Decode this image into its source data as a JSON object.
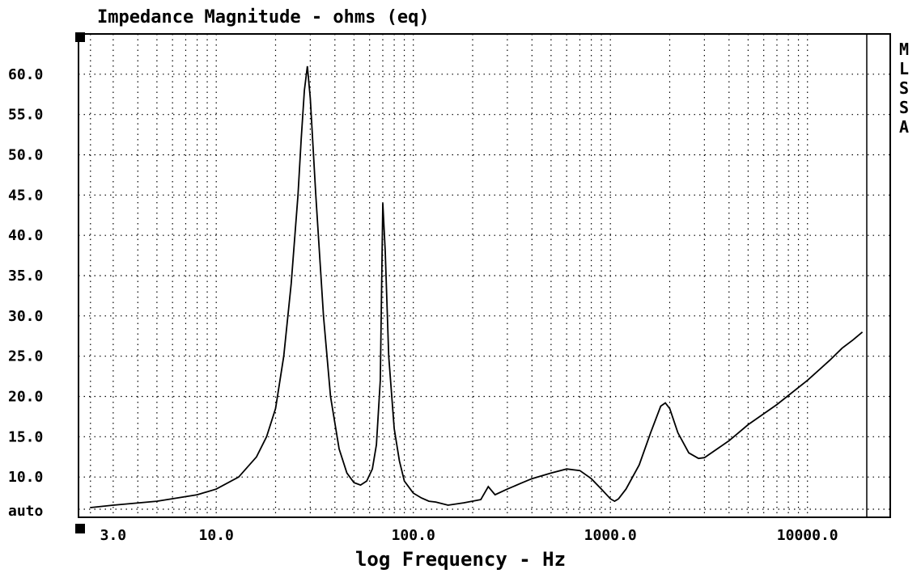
{
  "chart_data": {
    "type": "line",
    "title": "Impedance Magnitude - ohms (eq)",
    "xlabel": "log Frequency - Hz",
    "ylabel": "",
    "x_scale": "log",
    "xlim": [
      2,
      20000
    ],
    "ylim": [
      5,
      65
    ],
    "grid": true,
    "x_ticks": [
      {
        "value": 3,
        "label": "3.0"
      },
      {
        "value": 10,
        "label": "10.0"
      },
      {
        "value": 100,
        "label": "100.0"
      },
      {
        "value": 1000,
        "label": "1000.0"
      },
      {
        "value": 10000,
        "label": "10000.0"
      }
    ],
    "y_ticks": [
      {
        "value": 6,
        "label": "auto"
      },
      {
        "value": 10,
        "label": "10.0"
      },
      {
        "value": 15,
        "label": "15.0"
      },
      {
        "value": 20,
        "label": "20.0"
      },
      {
        "value": 25,
        "label": "25.0"
      },
      {
        "value": 30,
        "label": "30.0"
      },
      {
        "value": 35,
        "label": "35.0"
      },
      {
        "value": 40,
        "label": "40.0"
      },
      {
        "value": 45,
        "label": "45.0"
      },
      {
        "value": 50,
        "label": "50.0"
      },
      {
        "value": 55,
        "label": "55.0"
      },
      {
        "value": 60,
        "label": "60.0"
      }
    ],
    "side_label": [
      "M",
      "L",
      "S",
      "S",
      "A"
    ],
    "series": [
      {
        "x": [
          2.3,
          3,
          5,
          8,
          10,
          13,
          16,
          18,
          20,
          22,
          24,
          26,
          27,
          28,
          29,
          30,
          32,
          35,
          38,
          42,
          46,
          50,
          54,
          58,
          62,
          65,
          68,
          70,
          72,
          75,
          80,
          85,
          90,
          100,
          110,
          120,
          130,
          150,
          180,
          220,
          240,
          260,
          300,
          350,
          400,
          500,
          600,
          700,
          800,
          900,
          1000,
          1050,
          1100,
          1200,
          1400,
          1600,
          1800,
          1900,
          2000,
          2200,
          2500,
          2800,
          3000,
          4000,
          5000,
          7000,
          10000,
          13000,
          15000,
          17000,
          19000
        ],
        "y": [
          6.2,
          6.5,
          7.0,
          7.8,
          8.5,
          10.0,
          12.5,
          15.0,
          18.5,
          25.0,
          34.0,
          45.0,
          52.0,
          58.0,
          61.0,
          57.0,
          45.0,
          30.0,
          20.0,
          13.5,
          10.5,
          9.3,
          9.0,
          9.5,
          11.0,
          14.0,
          22.0,
          44.0,
          38.0,
          25.0,
          16.0,
          12.0,
          9.5,
          8.0,
          7.4,
          7.0,
          6.9,
          6.5,
          6.8,
          7.2,
          8.8,
          7.8,
          8.5,
          9.2,
          9.8,
          10.5,
          11.0,
          10.8,
          9.8,
          8.5,
          7.3,
          7.0,
          7.3,
          8.5,
          11.5,
          15.5,
          18.8,
          19.2,
          18.5,
          15.5,
          13.0,
          12.3,
          12.4,
          14.5,
          16.5,
          19.0,
          22.0,
          24.5,
          26.0,
          27.0,
          28.0
        ]
      }
    ]
  }
}
